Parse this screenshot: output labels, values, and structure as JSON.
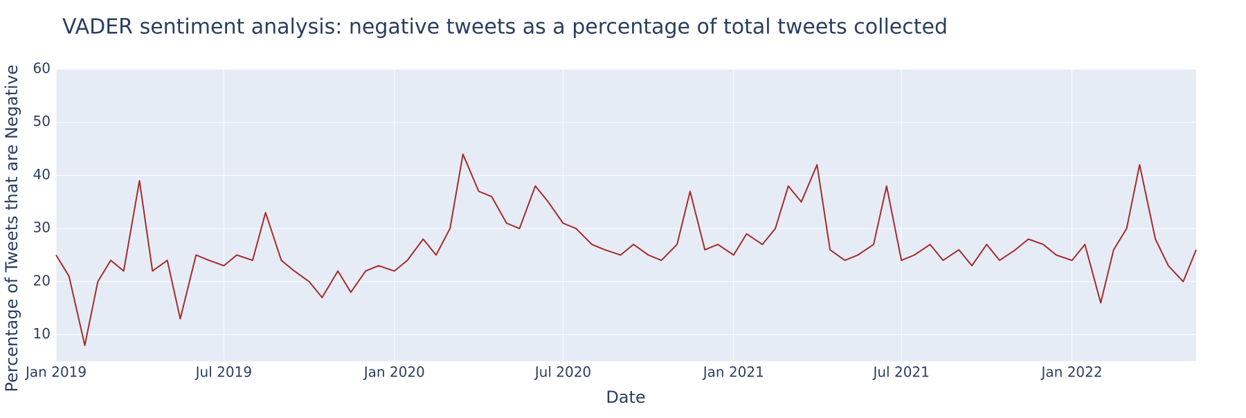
{
  "chart_data": {
    "type": "line",
    "title": "VADER sentiment analysis: negative tweets as a percentage of total tweets collected",
    "xlabel": "Date",
    "ylabel": "Percentage of Tweets that are Negative",
    "x": [
      "2019-01-01",
      "2019-01-15",
      "2019-02-01",
      "2019-02-15",
      "2019-03-01",
      "2019-03-15",
      "2019-04-01",
      "2019-04-15",
      "2019-05-01",
      "2019-05-15",
      "2019-06-01",
      "2019-06-15",
      "2019-07-01",
      "2019-07-15",
      "2019-08-01",
      "2019-08-15",
      "2019-09-01",
      "2019-09-15",
      "2019-10-01",
      "2019-10-15",
      "2019-11-01",
      "2019-11-15",
      "2019-12-01",
      "2019-12-15",
      "2020-01-01",
      "2020-01-15",
      "2020-02-01",
      "2020-02-15",
      "2020-03-01",
      "2020-03-15",
      "2020-04-01",
      "2020-04-15",
      "2020-05-01",
      "2020-05-15",
      "2020-06-01",
      "2020-06-15",
      "2020-07-01",
      "2020-07-15",
      "2020-08-01",
      "2020-08-15",
      "2020-09-01",
      "2020-09-15",
      "2020-10-01",
      "2020-10-15",
      "2020-11-01",
      "2020-11-15",
      "2020-12-01",
      "2020-12-15",
      "2021-01-01",
      "2021-01-15",
      "2021-02-01",
      "2021-02-15",
      "2021-03-01",
      "2021-03-15",
      "2021-04-01",
      "2021-04-15",
      "2021-05-01",
      "2021-05-15",
      "2021-06-01",
      "2021-06-15",
      "2021-07-01",
      "2021-07-15",
      "2021-08-01",
      "2021-08-15",
      "2021-09-01",
      "2021-09-15",
      "2021-10-01",
      "2021-10-15",
      "2021-11-01",
      "2021-11-15",
      "2021-12-01",
      "2021-12-15",
      "2022-01-01",
      "2022-01-15",
      "2022-02-01",
      "2022-02-15",
      "2022-03-01",
      "2022-03-15",
      "2022-04-01",
      "2022-04-15",
      "2022-05-01",
      "2022-05-15"
    ],
    "series": [
      {
        "name": "negative",
        "color": "#a52a2a",
        "values": [
          25,
          21,
          8,
          20,
          24,
          22,
          39,
          22,
          24,
          13,
          25,
          24,
          23,
          25,
          24,
          33,
          24,
          22,
          20,
          17,
          22,
          18,
          22,
          23,
          22,
          24,
          28,
          25,
          30,
          44,
          37,
          36,
          31,
          30,
          38,
          35,
          31,
          30,
          27,
          26,
          25,
          27,
          25,
          24,
          27,
          37,
          26,
          27,
          25,
          29,
          27,
          30,
          38,
          35,
          42,
          26,
          24,
          25,
          27,
          38,
          24,
          25,
          27,
          24,
          26,
          23,
          27,
          24,
          26,
          28,
          27,
          25,
          24,
          27,
          16,
          26,
          30,
          42,
          28,
          23,
          20,
          26
        ]
      }
    ],
    "xlim": [
      "2019-01-01",
      "2022-05-15"
    ],
    "xticks": [
      {
        "value": "2019-01",
        "label": "Jan 2019"
      },
      {
        "value": "2019-07",
        "label": "Jul 2019"
      },
      {
        "value": "2020-01",
        "label": "Jan 2020"
      },
      {
        "value": "2020-07",
        "label": "Jul 2020"
      },
      {
        "value": "2021-01",
        "label": "Jan 2021"
      },
      {
        "value": "2021-07",
        "label": "Jul 2021"
      },
      {
        "value": "2022-01",
        "label": "Jan 2022"
      }
    ],
    "ylim": [
      5,
      60
    ],
    "yticks": [
      10,
      20,
      30,
      40,
      50,
      60
    ],
    "grid": true
  }
}
